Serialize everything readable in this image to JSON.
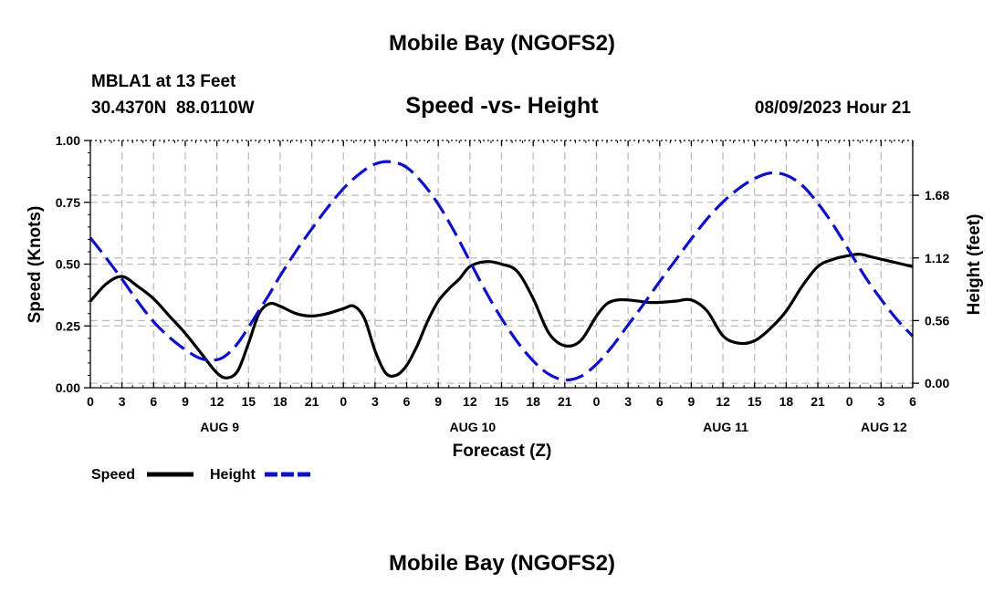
{
  "header": {
    "title": "Mobile Bay (NGOFS2)",
    "station": "MBLA1 at 13 Feet",
    "coords": "30.4370N  88.0110W",
    "subtitle": "Speed -vs- Height",
    "timestamp": "08/09/2023 Hour 21"
  },
  "footer": {
    "title": "Mobile Bay (NGOFS2)"
  },
  "legend": [
    {
      "label": "Speed",
      "color": "#000000",
      "style": "solid"
    },
    {
      "label": "Height",
      "color": "#1010c8",
      "style": "dashed"
    }
  ],
  "chart_data": {
    "type": "line",
    "title": "Speed -vs- Height",
    "xlabel": "Forecast (Z)",
    "ylabel": "Speed (Knots)",
    "y2label": "Height (feet)",
    "xlim": [
      0,
      78
    ],
    "ylim": [
      0,
      1.0
    ],
    "y2lim": [
      -0.04,
      2.17
    ],
    "x_tick_labels": [
      "0",
      "3",
      "6",
      "9",
      "12",
      "15",
      "18",
      "21",
      "0",
      "3",
      "6",
      "9",
      "12",
      "15",
      "18",
      "21",
      "0",
      "3",
      "6",
      "9",
      "12",
      "15",
      "18",
      "21",
      "0",
      "3",
      "6"
    ],
    "day_labels": [
      {
        "x": 12,
        "label": "AUG 9"
      },
      {
        "x": 36,
        "label": "AUG 10"
      },
      {
        "x": 60,
        "label": "AUG 11"
      },
      {
        "x": 75,
        "label": "AUG 12"
      }
    ],
    "y_ticks": [
      {
        "value": 0,
        "label": "0.00"
      },
      {
        "value": 0.25,
        "label": "0.25"
      },
      {
        "value": 0.5,
        "label": "0.50"
      },
      {
        "value": 0.75,
        "label": "0.75"
      },
      {
        "value": 1.0,
        "label": "1.00"
      }
    ],
    "y2_ticks": [
      {
        "value": 0.0,
        "label": "0.00"
      },
      {
        "value": 0.56,
        "label": "0.56"
      },
      {
        "value": 1.12,
        "label": "1.12"
      },
      {
        "value": 1.68,
        "label": "1.68"
      }
    ],
    "series": [
      {
        "name": "Speed",
        "axis": "left",
        "x": [
          0,
          1.5,
          3,
          4.5,
          6,
          7.5,
          9,
          10.5,
          12,
          13,
          14,
          15,
          16,
          17,
          18,
          19.5,
          21,
          22.5,
          24,
          25,
          26,
          27,
          28,
          29,
          30,
          31,
          32,
          33,
          34,
          35,
          36,
          37.5,
          39,
          40.5,
          42,
          43.5,
          45,
          46.5,
          48,
          49,
          50,
          51,
          52,
          53,
          54,
          55.5,
          57,
          58.5,
          60,
          61.5,
          63,
          64.5,
          66,
          67.5,
          69,
          70.5,
          72,
          73,
          74,
          75,
          76,
          77,
          78
        ],
        "values": [
          0.35,
          0.42,
          0.45,
          0.41,
          0.36,
          0.29,
          0.22,
          0.14,
          0.06,
          0.04,
          0.07,
          0.18,
          0.3,
          0.34,
          0.33,
          0.3,
          0.29,
          0.3,
          0.32,
          0.33,
          0.28,
          0.15,
          0.06,
          0.05,
          0.09,
          0.17,
          0.27,
          0.35,
          0.4,
          0.44,
          0.49,
          0.51,
          0.5,
          0.47,
          0.36,
          0.22,
          0.17,
          0.19,
          0.29,
          0.34,
          0.355,
          0.355,
          0.35,
          0.345,
          0.345,
          0.35,
          0.355,
          0.31,
          0.21,
          0.18,
          0.19,
          0.24,
          0.31,
          0.41,
          0.49,
          0.52,
          0.535,
          0.54,
          0.53,
          0.52,
          0.51,
          0.5,
          0.49
        ]
      },
      {
        "name": "Height",
        "axis": "right",
        "x": [
          0,
          1.5,
          3,
          4.5,
          6,
          7.5,
          9,
          10.5,
          12,
          13,
          14,
          15,
          16,
          17,
          18,
          19.5,
          21,
          22.5,
          24,
          25.5,
          27,
          28.5,
          30,
          31.5,
          33,
          34.5,
          36,
          37.5,
          39,
          40.5,
          42,
          43.5,
          45,
          46.5,
          48,
          49.5,
          51,
          52.5,
          54,
          55.5,
          57,
          58.5,
          60,
          61.5,
          63,
          64.5,
          66,
          67.5,
          69,
          70.5,
          72,
          73.5,
          75,
          76.5,
          78
        ],
        "values": [
          1.3,
          1.12,
          0.93,
          0.73,
          0.55,
          0.41,
          0.3,
          0.22,
          0.21,
          0.26,
          0.36,
          0.5,
          0.65,
          0.8,
          0.96,
          1.18,
          1.38,
          1.57,
          1.74,
          1.87,
          1.96,
          1.98,
          1.93,
          1.79,
          1.6,
          1.36,
          1.09,
          0.82,
          0.58,
          0.37,
          0.2,
          0.08,
          0.03,
          0.06,
          0.17,
          0.33,
          0.52,
          0.71,
          0.91,
          1.1,
          1.29,
          1.47,
          1.62,
          1.74,
          1.83,
          1.88,
          1.86,
          1.77,
          1.61,
          1.41,
          1.18,
          0.95,
          0.75,
          0.57,
          0.42
        ]
      }
    ]
  }
}
